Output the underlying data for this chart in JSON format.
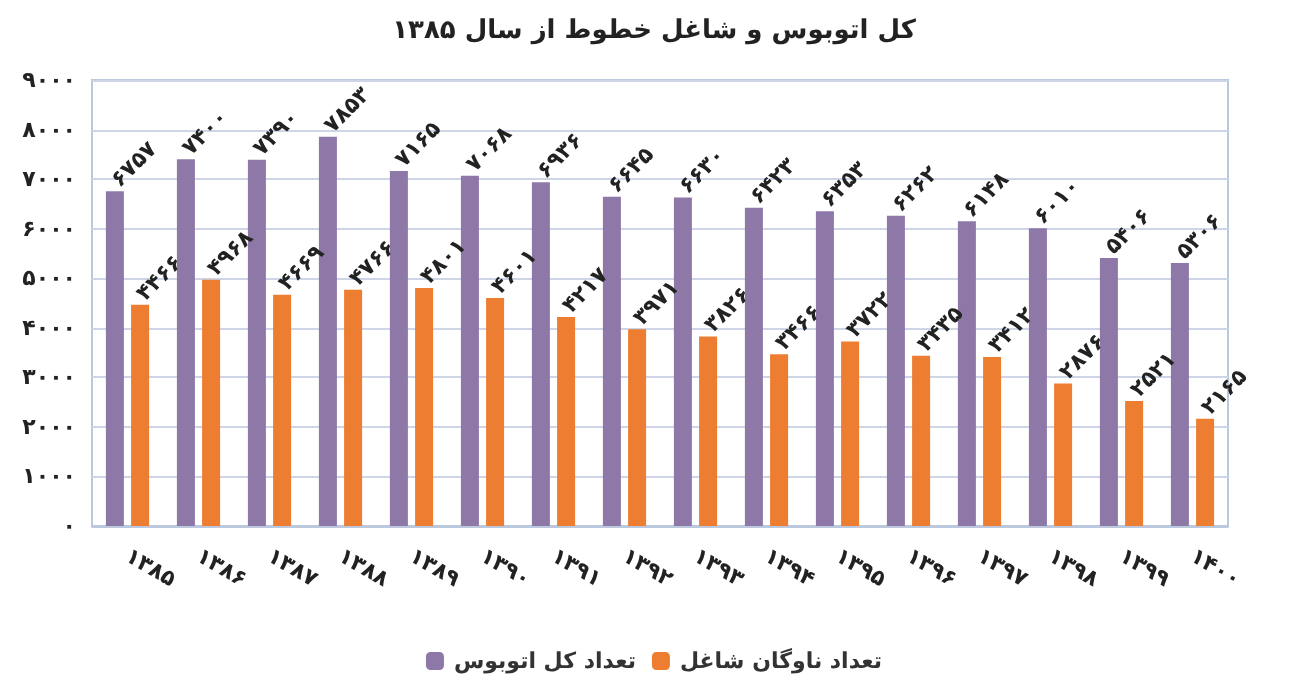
{
  "chart_data": {
    "type": "bar",
    "title": "کل اتوبوس و شاغل خطوط از سال ۱۳۸۵",
    "categories": [
      "۱۳۸۵",
      "۱۳۸۶",
      "۱۳۸۷",
      "۱۳۸۸",
      "۱۳۸۹",
      "۱۳۹۰",
      "۱۳۹۱",
      "۱۳۹۲",
      "۱۳۹۳",
      "۱۳۹۴",
      "۱۳۹۵",
      "۱۳۹۶",
      "۱۳۹۷",
      "۱۳۹۸",
      "۱۳۹۹",
      "۱۴۰۰"
    ],
    "series": [
      {
        "name": "تعداد کل اتوبوس",
        "color": "#8e78a8",
        "values": [
          6757,
          7400,
          7390,
          7853,
          7165,
          7068,
          6936,
          6645,
          6630,
          6423,
          6353,
          6262,
          6148,
          6010,
          5406,
          5306
        ],
        "value_labels": [
          "۶۷۵۷",
          "۷۴۰۰",
          "۷۳۹۰",
          "۷۸۵۳",
          "۷۱۶۵",
          "۷۰۶۸",
          "۶۹۳۶",
          "۶۶۴۵",
          "۶۶۳۰",
          "۶۴۲۳",
          "۶۳۵۳",
          "۶۲۶۲",
          "۶۱۴۸",
          "۶۰۱۰",
          "۵۴۰۶",
          "۵۳۰۶"
        ]
      },
      {
        "name": "تعداد ناوگان شاغل",
        "color": "#ed7d31",
        "values": [
          4466,
          4968,
          4669,
          4766,
          4801,
          4601,
          4217,
          3971,
          3826,
          3466,
          3722,
          3435,
          3412,
          2876,
          2521,
          2165
        ],
        "value_labels": [
          "۴۴۶۶",
          "۴۹۶۸",
          "۴۶۶۹",
          "۴۷۶۶",
          "۴۸۰۱",
          "۴۶۰۱",
          "۴۲۱۷",
          "۳۹۷۱",
          "۳۸۲۶",
          "۳۴۶۶",
          "۳۷۲۲",
          "۳۴۳۵",
          "۳۴۱۲",
          "۲۸۷۶",
          "۲۵۲۱",
          "۲۱۶۵"
        ]
      }
    ],
    "ylim": [
      0,
      9000
    ],
    "yticks": [
      {
        "value": 0,
        "label": "۰"
      },
      {
        "value": 1000,
        "label": "۱۰۰۰"
      },
      {
        "value": 2000,
        "label": "۲۰۰۰"
      },
      {
        "value": 3000,
        "label": "۳۰۰۰"
      },
      {
        "value": 4000,
        "label": "۴۰۰۰"
      },
      {
        "value": 5000,
        "label": "۵۰۰۰"
      },
      {
        "value": 6000,
        "label": "۶۰۰۰"
      },
      {
        "value": 7000,
        "label": "۷۰۰۰"
      },
      {
        "value": 8000,
        "label": "۸۰۰۰"
      },
      {
        "value": 9000,
        "label": "۹۰۰۰"
      }
    ],
    "grid": "y",
    "legend": "bottom"
  }
}
